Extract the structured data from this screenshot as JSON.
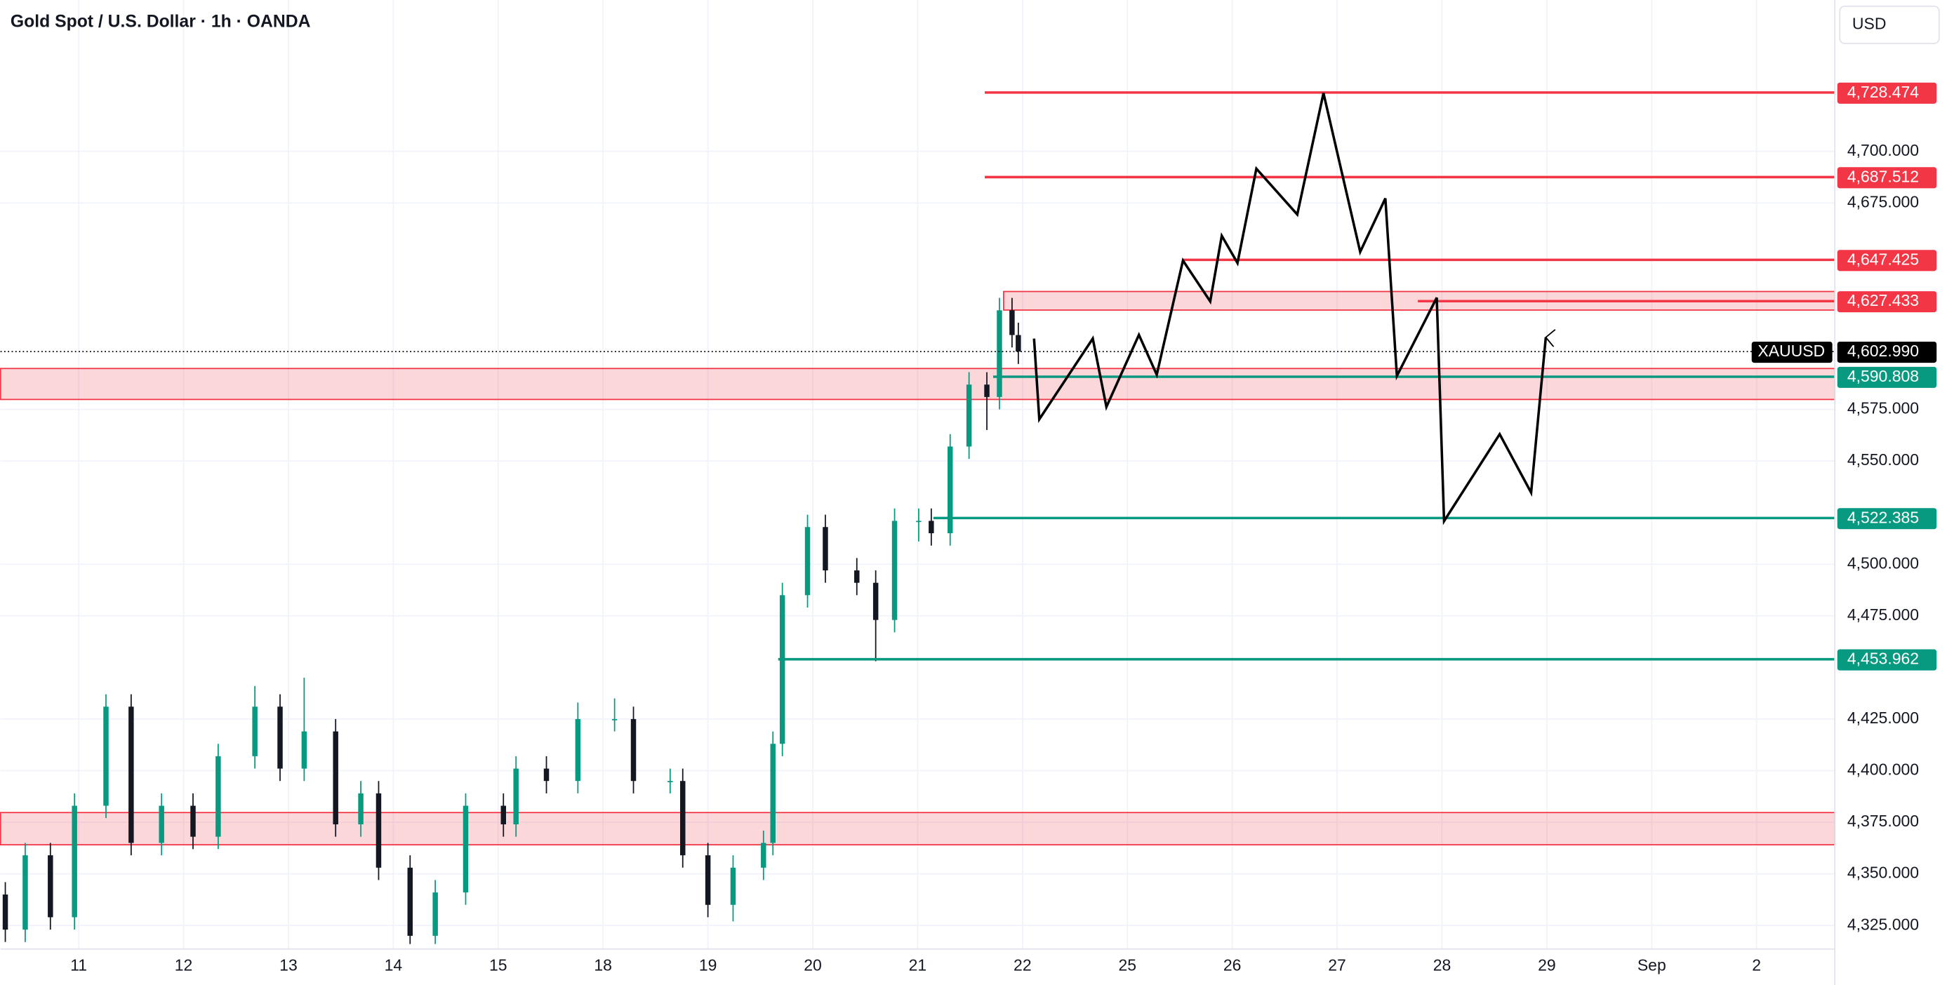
{
  "chart_data": {
    "type": "candlestick",
    "title": "Gold Spot / U.S. Dollar · 1h · OANDA",
    "currency": "USD",
    "xlim": [
      -0.746,
      16.746
    ],
    "ylim": [
      4313.6,
      4773.3
    ],
    "grid": true,
    "up_color": "#089981",
    "down_color": "#131722",
    "xticks": [
      {
        "value": 0,
        "label": "11"
      },
      {
        "value": 1,
        "label": "12"
      },
      {
        "value": 2,
        "label": "13"
      },
      {
        "value": 3,
        "label": "14"
      },
      {
        "value": 4,
        "label": "15"
      },
      {
        "value": 5,
        "label": "18"
      },
      {
        "value": 6,
        "label": "19"
      },
      {
        "value": 7,
        "label": "20"
      },
      {
        "value": 8,
        "label": "21"
      },
      {
        "value": 9,
        "label": "22"
      },
      {
        "value": 10,
        "label": "25"
      },
      {
        "value": 11,
        "label": "26"
      },
      {
        "value": 12,
        "label": "27"
      },
      {
        "value": 13,
        "label": "28"
      },
      {
        "value": 14,
        "label": "29"
      },
      {
        "value": 15,
        "label": "Sep"
      },
      {
        "value": 16,
        "label": "2"
      }
    ],
    "yticks": [
      {
        "value": 4325,
        "label": "4,325.000"
      },
      {
        "value": 4350,
        "label": "4,350.000"
      },
      {
        "value": 4375,
        "label": "4,375.000"
      },
      {
        "value": 4400,
        "label": "4,400.000"
      },
      {
        "value": 4425,
        "label": "4,425.000"
      },
      {
        "value": 4475,
        "label": "4,475.000"
      },
      {
        "value": 4500,
        "label": "4,500.000"
      },
      {
        "value": 4550,
        "label": "4,550.000"
      },
      {
        "value": 4575,
        "label": "4,575.000"
      },
      {
        "value": 4675,
        "label": "4,675.000"
      },
      {
        "value": 4700,
        "label": "4,700.000"
      }
    ],
    "candles": {
      "x": [
        -0.7,
        -0.51,
        -0.27,
        -0.04,
        0.26,
        0.5,
        0.79,
        1.09,
        1.33,
        1.68,
        1.92,
        2.15,
        2.45,
        2.69,
        2.86,
        3.16,
        3.4,
        3.69,
        4.05,
        4.17,
        4.46,
        4.76,
        5.11,
        5.29,
        5.64,
        5.76,
        6.0,
        6.24,
        6.53,
        6.62,
        6.71,
        6.95,
        7.12,
        7.42,
        7.6,
        7.78,
        8.01,
        8.13,
        8.31,
        8.49,
        8.66,
        8.78,
        8.9,
        8.96
      ],
      "open": [
        4340,
        4323,
        4359,
        4329,
        4383,
        4431,
        4365,
        4383,
        4368,
        4407,
        4431,
        4401,
        4419,
        4374,
        4389,
        4353,
        4320,
        4341,
        4383,
        4374,
        4401,
        4395,
        4425,
        4425,
        4395,
        4395,
        4359,
        4335,
        4353,
        4365,
        4413,
        4485,
        4518,
        4497,
        4491,
        4473,
        4521,
        4521,
        4515,
        4557,
        4587,
        4581,
        4623,
        4611
      ],
      "high": [
        4346,
        4365,
        4365,
        4389,
        4437,
        4437,
        4389,
        4389,
        4413,
        4441,
        4437,
        4445,
        4425,
        4395,
        4395,
        4359,
        4347,
        4389,
        4389,
        4407,
        4407,
        4433,
        4435,
        4431,
        4401,
        4401,
        4365,
        4359,
        4371,
        4419,
        4491,
        4524,
        4524,
        4503,
        4497,
        4527,
        4527,
        4527,
        4563,
        4593,
        4593,
        4629,
        4629,
        4617
      ],
      "low": [
        4317,
        4317,
        4323,
        4323,
        4377,
        4359,
        4359,
        4362,
        4362,
        4401,
        4395,
        4395,
        4368,
        4368,
        4347,
        4316,
        4316,
        4335,
        4368,
        4368,
        4389,
        4389,
        4419,
        4389,
        4389,
        4353,
        4329,
        4327,
        4347,
        4359,
        4407,
        4479,
        4491,
        4485,
        4453,
        4467,
        4511,
        4509,
        4509,
        4551,
        4565,
        4575,
        4605,
        4597
      ],
      "close": [
        4323,
        4359,
        4329,
        4383,
        4431,
        4365,
        4383,
        4368,
        4407,
        4431,
        4401,
        4419,
        4374,
        4389,
        4353,
        4320,
        4341,
        4383,
        4374,
        4401,
        4395,
        4425,
        4425,
        4395,
        4395,
        4359,
        4335,
        4353,
        4365,
        4413,
        4485,
        4518,
        4497,
        4491,
        4473,
        4521,
        4521,
        4515,
        4557,
        4587,
        4581,
        4623,
        4611,
        4603
      ]
    },
    "zones": [
      {
        "low": 4579.8,
        "high": 4594.8,
        "from": -0.746,
        "color": "#f23645"
      },
      {
        "low": 4623.1,
        "high": 4632.1,
        "from": 8.82,
        "color": "#f23645"
      },
      {
        "low": 4364.1,
        "high": 4379.7,
        "from": -0.746,
        "color": "#f23645"
      }
    ],
    "levels": [
      {
        "value": 4728.474,
        "label": "4,728.474",
        "from": 8.64,
        "color": "#f23645"
      },
      {
        "value": 4687.512,
        "label": "4,687.512",
        "from": 8.64,
        "color": "#f23645"
      },
      {
        "value": 4647.425,
        "label": "4,647.425",
        "from": 10.53,
        "color": "#f23645"
      },
      {
        "value": 4627.433,
        "label": "4,627.433",
        "from": 12.77,
        "color": "#f23645"
      },
      {
        "value": 4590.808,
        "label": "4,590.808",
        "from": 8.72,
        "color": "#089981"
      },
      {
        "value": 4522.385,
        "label": "4,522.385",
        "from": 8.15,
        "color": "#089981"
      },
      {
        "value": 4453.962,
        "label": "4,453.962",
        "from": 6.67,
        "color": "#089981"
      }
    ],
    "last_price": {
      "name": "XAUUSD",
      "value": 4602.99,
      "label": "4,602.990",
      "color": "#000000"
    },
    "projection": {
      "color": "#000000",
      "x": [
        9.11,
        9.16,
        9.67,
        9.8,
        10.11,
        10.28,
        10.53,
        10.79,
        10.9,
        11.05,
        11.23,
        11.62,
        11.87,
        12.22,
        12.46,
        12.57,
        12.95,
        13.02,
        13.55,
        13.85,
        13.99
      ],
      "y": [
        4609.3,
        4570.2,
        4609.3,
        4576.2,
        4611.1,
        4591.8,
        4647.1,
        4627.3,
        4659.1,
        4645.9,
        4691.6,
        4669.4,
        4728.2,
        4651.3,
        4677.2,
        4591.2,
        4629.1,
        4520.9,
        4563.0,
        4534.7,
        4609.9
      ]
    }
  }
}
